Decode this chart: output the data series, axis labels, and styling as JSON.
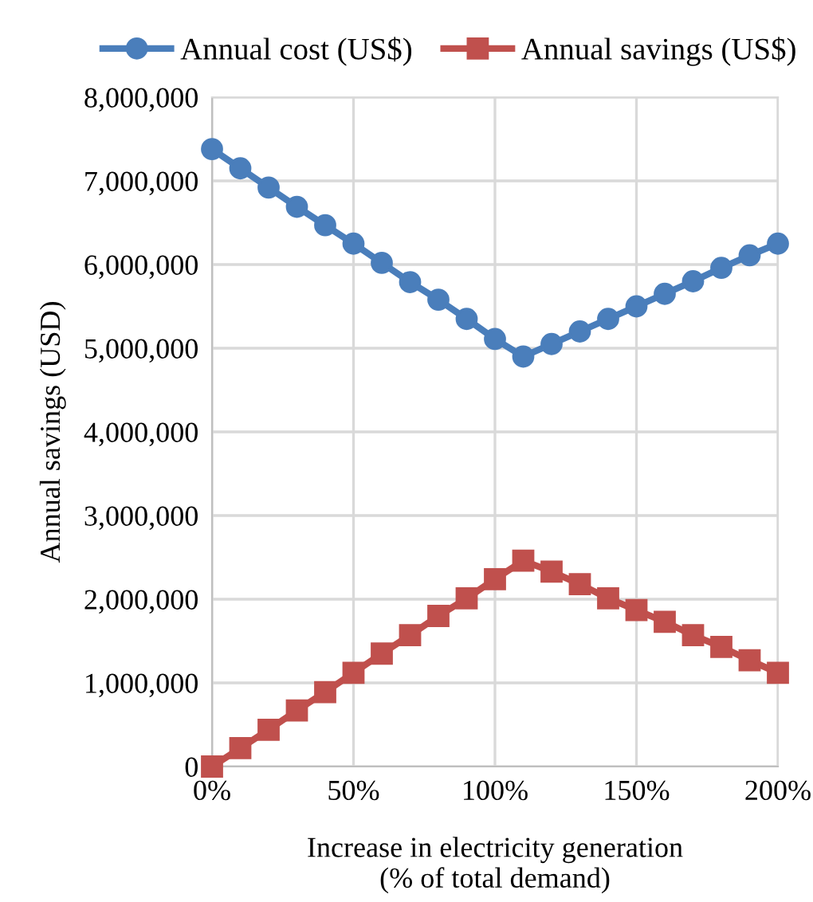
{
  "chart_data": {
    "type": "line",
    "xlabel": "Increase in electricity generation\n(% of total demand)",
    "ylabel": "Annual savings (USD)",
    "x": [
      0,
      10,
      20,
      30,
      40,
      50,
      60,
      70,
      80,
      90,
      100,
      110,
      120,
      130,
      140,
      150,
      160,
      170,
      180,
      190,
      200
    ],
    "series": [
      {
        "name": "Annual cost (US$)",
        "color": "#4a7ebb",
        "marker": "circle",
        "values": [
          7380000,
          7150000,
          6920000,
          6690000,
          6470000,
          6250000,
          6020000,
          5790000,
          5580000,
          5350000,
          5110000,
          4900000,
          5050000,
          5200000,
          5350000,
          5500000,
          5650000,
          5800000,
          5960000,
          6110000,
          6250000
        ]
      },
      {
        "name": "Annual savings (US$)",
        "color": "#c0504d",
        "marker": "square",
        "values": [
          0,
          220000,
          440000,
          670000,
          890000,
          1120000,
          1350000,
          1570000,
          1800000,
          2010000,
          2240000,
          2460000,
          2330000,
          2180000,
          2010000,
          1870000,
          1730000,
          1570000,
          1430000,
          1270000,
          1120000
        ]
      }
    ],
    "xlim": [
      0,
      200
    ],
    "xticks": [
      {
        "value": 0,
        "label": "0%"
      },
      {
        "value": 50,
        "label": "50%"
      },
      {
        "value": 100,
        "label": "100%"
      },
      {
        "value": 150,
        "label": "150%"
      },
      {
        "value": 200,
        "label": "200%"
      }
    ],
    "ylim": [
      0,
      8000000
    ],
    "yticks": [
      {
        "value": 0,
        "label": "0"
      },
      {
        "value": 1000000,
        "label": "1,000,000"
      },
      {
        "value": 2000000,
        "label": "2,000,000"
      },
      {
        "value": 3000000,
        "label": "3,000,000"
      },
      {
        "value": 4000000,
        "label": "4,000,000"
      },
      {
        "value": 5000000,
        "label": "5,000,000"
      },
      {
        "value": 6000000,
        "label": "6,000,000"
      },
      {
        "value": 7000000,
        "label": "7,000,000"
      },
      {
        "value": 8000000,
        "label": "8,000,000"
      }
    ],
    "grid": true,
    "legend": "top"
  }
}
